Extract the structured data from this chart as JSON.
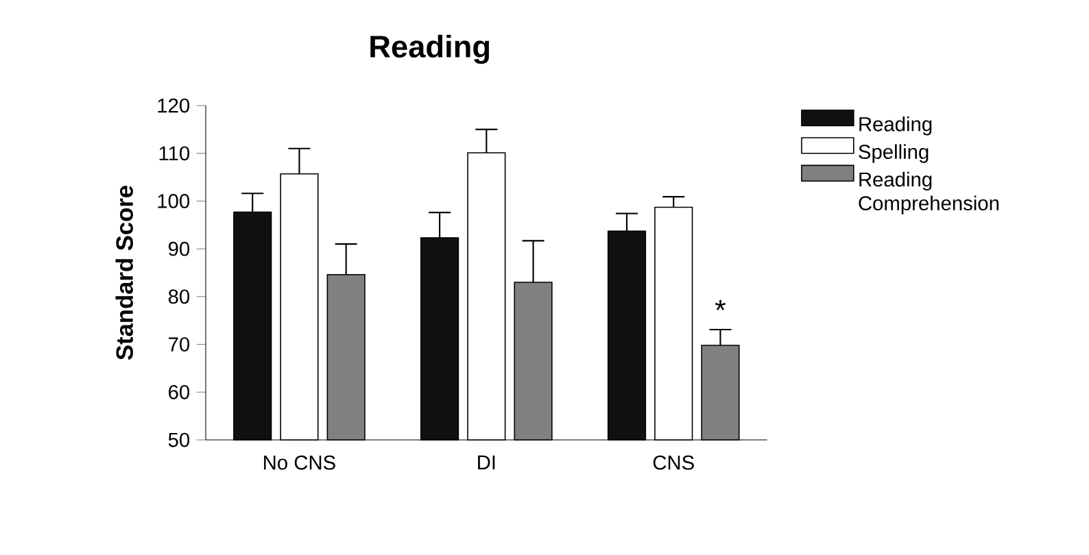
{
  "chart_data": {
    "type": "bar",
    "title": "Reading",
    "ylabel": "Standard Score",
    "categories": [
      "No CNS",
      "DI",
      "CNS"
    ],
    "series": [
      {
        "name": "Reading",
        "color": "#111111",
        "values": [
          97.7,
          92.3,
          93.7
        ],
        "errors": [
          [
            97.7,
            101.6
          ],
          [
            92.3,
            97.6
          ],
          [
            93.7,
            97.4
          ]
        ]
      },
      {
        "name": "Spelling",
        "color": "#ffffff",
        "values": [
          105.7,
          110.1,
          98.7
        ],
        "errors": [
          [
            105.7,
            111.0
          ],
          [
            110.1,
            115.0
          ],
          [
            98.7,
            100.9
          ]
        ]
      },
      {
        "name": "Reading Comprehension",
        "color": "#808080",
        "values": [
          84.6,
          83.0,
          69.8
        ],
        "errors": [
          [
            84.6,
            91.0
          ],
          [
            83.0,
            91.7
          ],
          [
            69.8,
            73.1
          ]
        ]
      }
    ],
    "ylim": [
      50,
      120
    ],
    "yticks": [
      50,
      60,
      70,
      80,
      90,
      100,
      110,
      120
    ],
    "annotations": [
      "*"
    ],
    "legend": "top right",
    "grid": false
  }
}
